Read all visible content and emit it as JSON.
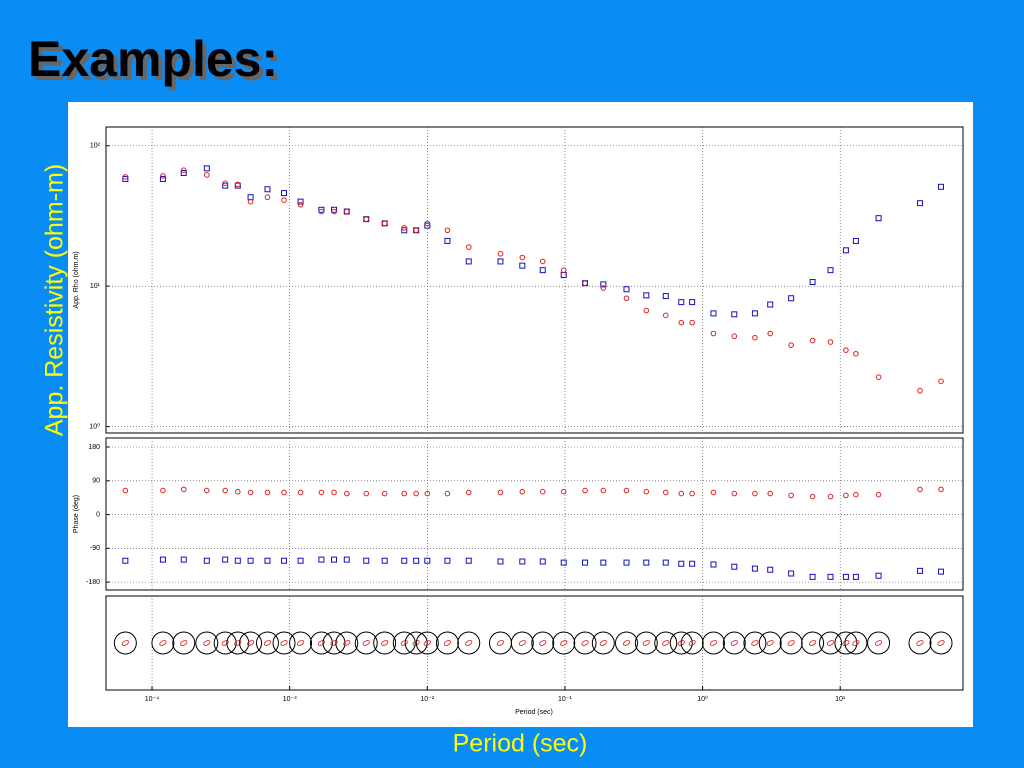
{
  "slide": {
    "title": "Examples:",
    "y_axis_label": "App. Resistivity (ohm-m)",
    "x_axis_label": "Period (sec)"
  },
  "chart_data": [
    {
      "type": "scatter",
      "ylabel": "App. Rho (ohm.m)",
      "xlabel": "Period (sec)",
      "log_x": true,
      "log_y": true,
      "grid": true,
      "xlim": [
        4.63e-05,
        78
      ],
      "ylim": [
        0.9,
        136
      ],
      "xticks": [
        {
          "value": 0.0001,
          "label": "10⁻⁴"
        },
        {
          "value": 0.001,
          "label": "10⁻³"
        },
        {
          "value": 0.01,
          "label": "10⁻²"
        },
        {
          "value": 0.1,
          "label": "10⁻¹"
        },
        {
          "value": 1,
          "label": "10⁰"
        },
        {
          "value": 10,
          "label": "10¹"
        }
      ],
      "yticks": [
        {
          "value": 1,
          "label": "10⁰"
        },
        {
          "value": 10,
          "label": "10¹"
        },
        {
          "value": 100,
          "label": "10²"
        }
      ],
      "x": [
        6.4e-05,
        0.00012,
        0.00017,
        0.00025,
        0.00034,
        0.00042,
        0.00052,
        0.00069,
        0.00091,
        0.0012,
        0.0017,
        0.0021,
        0.0026,
        0.0036,
        0.0049,
        0.0068,
        0.0083,
        0.01,
        0.014,
        0.02,
        0.034,
        0.049,
        0.069,
        0.098,
        0.14,
        0.19,
        0.28,
        0.39,
        0.54,
        0.7,
        0.84,
        1.2,
        1.7,
        2.4,
        3.1,
        4.4,
        6.3,
        8.5,
        11,
        13,
        19,
        38,
        54
      ],
      "series": [
        {
          "color": "#1010c0",
          "marker": "square",
          "values": [
            58,
            58,
            64,
            69,
            52,
            52,
            43,
            49,
            46,
            40,
            35,
            35,
            34,
            30,
            28,
            25,
            25,
            27,
            21,
            15,
            15,
            14,
            13,
            12,
            10.5,
            10.3,
            9.5,
            8.6,
            8.5,
            7.7,
            7.7,
            6.4,
            6.3,
            6.4,
            7.4,
            8.2,
            10.7,
            13,
            18,
            21,
            30.5,
            39,
            51
          ]
        },
        {
          "color": "#e02020",
          "marker": "circle",
          "values": [
            60,
            61,
            67,
            62,
            54,
            53,
            40,
            43,
            41,
            38,
            34,
            34,
            34,
            30,
            28,
            26,
            25,
            28,
            25,
            19,
            17,
            16,
            15,
            13,
            10.5,
            9.7,
            8.2,
            6.7,
            6.2,
            5.5,
            5.5,
            4.6,
            4.4,
            4.3,
            4.6,
            3.8,
            4.1,
            4.0,
            3.5,
            3.3,
            2.25,
            1.8,
            2.1
          ]
        }
      ]
    },
    {
      "type": "scatter",
      "ylabel": "Phase (deg)",
      "log_x": true,
      "grid": true,
      "xlim": [
        4.63e-05,
        78
      ],
      "ylim": [
        -201,
        204
      ],
      "yticks": [
        180,
        90,
        0,
        -90,
        -180
      ],
      "x": [
        6.4e-05,
        0.00012,
        0.00017,
        0.00025,
        0.00034,
        0.00042,
        0.00052,
        0.00069,
        0.00091,
        0.0012,
        0.0017,
        0.0021,
        0.0026,
        0.0036,
        0.0049,
        0.0068,
        0.0083,
        0.01,
        0.014,
        0.02,
        0.034,
        0.049,
        0.069,
        0.098,
        0.14,
        0.19,
        0.28,
        0.39,
        0.54,
        0.7,
        0.84,
        1.2,
        1.7,
        2.4,
        3.1,
        4.4,
        6.3,
        8.5,
        11,
        13,
        19,
        38,
        54
      ],
      "series": [
        {
          "color": "#1010c0",
          "marker": "square",
          "values": [
            -123,
            -120,
            -120,
            -123,
            -120,
            -123,
            -123,
            -123,
            -123,
            -123,
            -120,
            -120,
            -120,
            -123,
            -123,
            -123,
            -123,
            -123,
            -123,
            -123,
            -125,
            -125,
            -125,
            -128,
            -128,
            -128,
            -128,
            -128,
            -128,
            -131,
            -131,
            -133,
            -139,
            -144,
            -147,
            -157,
            -166,
            -166,
            -166,
            -166,
            -163,
            -150,
            -152
          ]
        },
        {
          "color": "#e02020",
          "marker": "circle",
          "values": [
            64,
            64,
            67,
            64,
            64,
            61,
            59,
            59,
            59,
            59,
            59,
            59,
            56,
            56,
            56,
            56,
            56,
            56,
            56,
            59,
            59,
            61,
            61,
            61,
            64,
            64,
            64,
            61,
            59,
            56,
            56,
            59,
            56,
            56,
            56,
            51,
            48,
            48,
            51,
            53,
            53,
            67,
            67
          ]
        }
      ]
    }
  ]
}
